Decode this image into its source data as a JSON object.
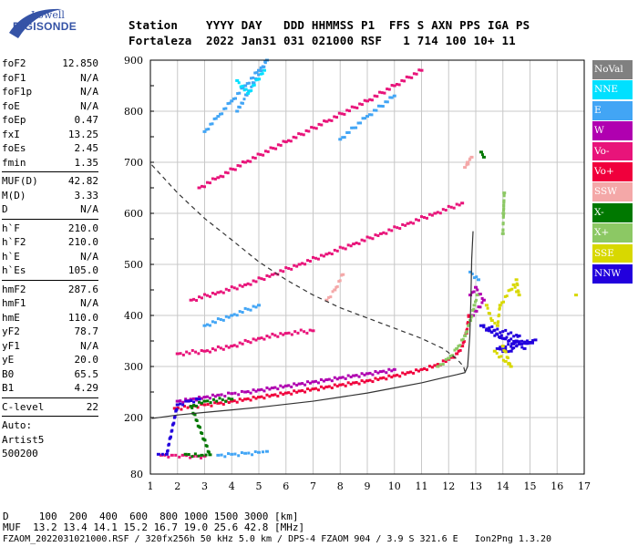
{
  "logo": {
    "top": "Lowell",
    "bottom": "DIGISONDE"
  },
  "header": {
    "row1": "Station    YYYY DAY   DDD HHMMSS P1  FFS S AXN PPS IGA PS",
    "row2": "Fortaleza  2022 Jan31 031 021000 RSF   1 714 100 10+ 11"
  },
  "params": {
    "group1": [
      {
        "label": "foF2",
        "value": "12.850"
      },
      {
        "label": "foF1",
        "value": "N/A"
      },
      {
        "label": "foF1p",
        "value": "N/A"
      },
      {
        "label": "foE",
        "value": "N/A"
      },
      {
        "label": "foEp",
        "value": "0.47"
      },
      {
        "label": "fxI",
        "value": "13.25"
      },
      {
        "label": "foEs",
        "value": "2.45"
      },
      {
        "label": "fmin",
        "value": "1.35"
      }
    ],
    "group2": [
      {
        "label": "MUF(D)",
        "value": "42.82"
      },
      {
        "label": "M(D)",
        "value": "3.33"
      },
      {
        "label": "D",
        "value": "N/A"
      }
    ],
    "group3": [
      {
        "label": "h`F",
        "value": "210.0"
      },
      {
        "label": "h`F2",
        "value": "210.0"
      },
      {
        "label": "h`E",
        "value": "N/A"
      },
      {
        "label": "h`Es",
        "value": "105.0"
      }
    ],
    "group4": [
      {
        "label": "hmF2",
        "value": "287.6"
      },
      {
        "label": "hmF1",
        "value": "N/A"
      },
      {
        "label": "hmE",
        "value": "110.0"
      },
      {
        "label": "yF2",
        "value": "78.7"
      },
      {
        "label": "yF1",
        "value": "N/A"
      },
      {
        "label": "yE",
        "value": "20.0"
      },
      {
        "label": "B0",
        "value": "65.5"
      },
      {
        "label": "B1",
        "value": "4.29"
      }
    ],
    "clevel": {
      "label": "C-level",
      "value": "22"
    },
    "auto": [
      "Auto:",
      "Artist5",
      "500200"
    ]
  },
  "legend": [
    {
      "label": "NoVal",
      "color": "#808080"
    },
    {
      "label": "NNE",
      "color": "#00e0ff"
    },
    {
      "label": "E",
      "color": "#42a5f5"
    },
    {
      "label": "W",
      "color": "#b000b0"
    },
    {
      "label": "Vo-",
      "color": "#e8147a"
    },
    {
      "label": "Vo+",
      "color": "#f0003c"
    },
    {
      "label": "SSW",
      "color": "#f4a8a8"
    },
    {
      "label": "X-",
      "color": "#007800"
    },
    {
      "label": "X+",
      "color": "#8cc864"
    },
    {
      "label": "SSE",
      "color": "#d8d800"
    },
    {
      "label": "NNW",
      "color": "#2200dd"
    }
  ],
  "footer": {
    "d_row": "D     100  200  400  600  800 1000 1500 3000 [km]",
    "muf_row": "MUF  13.2 13.4 14.1 15.2 16.7 19.0 25.6 42.8 [MHz]",
    "file_row": "FZAOM_2022031021000.RSF / 320fx256h 50 kHz 5.0 km / DPS-4 FZAOM 904 / 3.9 S 321.6 E   Ion2Png 1.3.20"
  },
  "chart_data": {
    "type": "scatter",
    "xlim": [
      1,
      17
    ],
    "ylim": [
      80,
      900
    ],
    "xticks": [
      "1",
      "2",
      "3",
      "4",
      "5",
      "6",
      "7",
      "8",
      "9",
      "10",
      "11",
      "12",
      "13",
      "14",
      "15",
      "16",
      "17"
    ],
    "yticks": [
      "80",
      "200",
      "300",
      "400",
      "500",
      "600",
      "700",
      "800",
      "900"
    ],
    "grid": true,
    "series": [
      {
        "name": "Vo+",
        "color": "#f0003c",
        "points": [
          [
            1.9,
            218
          ],
          [
            2.5,
            222
          ],
          [
            3.0,
            225
          ],
          [
            3.5,
            228
          ],
          [
            4.0,
            232
          ],
          [
            4.5,
            236
          ],
          [
            5.0,
            240
          ],
          [
            5.5,
            244
          ],
          [
            6.0,
            248
          ],
          [
            6.5,
            252
          ],
          [
            7.0,
            256
          ],
          [
            7.5,
            260
          ],
          [
            8.0,
            264
          ],
          [
            8.5,
            268
          ],
          [
            9.0,
            272
          ],
          [
            9.5,
            277
          ],
          [
            10.0,
            282
          ],
          [
            10.5,
            288
          ],
          [
            11.0,
            294
          ],
          [
            11.5,
            302
          ],
          [
            12.0,
            314
          ],
          [
            12.3,
            325
          ],
          [
            12.5,
            340
          ],
          [
            12.65,
            365
          ],
          [
            12.75,
            400
          ]
        ]
      },
      {
        "name": "W",
        "color": "#b000b0",
        "points": [
          [
            2.0,
            232
          ],
          [
            2.5,
            236
          ],
          [
            3.0,
            240
          ],
          [
            3.5,
            244
          ],
          [
            4.0,
            247
          ],
          [
            4.5,
            250
          ],
          [
            5.0,
            254
          ],
          [
            5.5,
            258
          ],
          [
            6.0,
            262
          ],
          [
            6.5,
            266
          ],
          [
            7.0,
            270
          ],
          [
            7.5,
            274
          ],
          [
            8.0,
            278
          ],
          [
            8.5,
            282
          ],
          [
            9.0,
            286
          ],
          [
            9.5,
            290
          ],
          [
            10.0,
            294
          ],
          [
            12.8,
            440
          ],
          [
            13.0,
            455
          ],
          [
            13.3,
            430
          ],
          [
            12.9,
            400
          ]
        ]
      },
      {
        "name": "X+",
        "color": "#8cc864",
        "points": [
          [
            11.6,
            300
          ],
          [
            12.0,
            316
          ],
          [
            12.3,
            335
          ],
          [
            12.6,
            360
          ],
          [
            12.8,
            390
          ],
          [
            12.95,
            420
          ],
          [
            13.05,
            440
          ],
          [
            14.0,
            560
          ],
          [
            14.05,
            640
          ],
          [
            14.02,
            600
          ]
        ]
      },
      {
        "name": "E",
        "color": "#42a5f5",
        "points": [
          [
            3.0,
            760
          ],
          [
            3.5,
            790
          ],
          [
            4.0,
            820
          ],
          [
            4.5,
            850
          ],
          [
            5.0,
            880
          ],
          [
            5.3,
            900
          ],
          [
            4.2,
            800
          ],
          [
            3.5,
            120
          ],
          [
            4.0,
            122
          ],
          [
            4.5,
            124
          ],
          [
            5.0,
            126
          ],
          [
            5.3,
            128
          ],
          [
            3.0,
            380
          ],
          [
            4.0,
            400
          ],
          [
            5.0,
            420
          ],
          [
            8.0,
            745
          ],
          [
            9.0,
            790
          ],
          [
            10.0,
            830
          ],
          [
            12.8,
            485
          ],
          [
            13.1,
            470
          ]
        ]
      },
      {
        "name": "Vo-",
        "color": "#e8147a",
        "points": [
          [
            2.8,
            650
          ],
          [
            3.5,
            670
          ],
          [
            4.5,
            700
          ],
          [
            6.0,
            740
          ],
          [
            7.5,
            780
          ],
          [
            9.0,
            820
          ],
          [
            10.0,
            850
          ],
          [
            11.0,
            880
          ],
          [
            1.4,
            120
          ],
          [
            1.8,
            120
          ],
          [
            2.2,
            120
          ],
          [
            2.6,
            118
          ],
          [
            3.0,
            118
          ],
          [
            2.0,
            325
          ],
          [
            3.0,
            330
          ],
          [
            4.0,
            340
          ],
          [
            5.0,
            355
          ],
          [
            6.0,
            365
          ],
          [
            7.0,
            370
          ],
          [
            2.5,
            430
          ],
          [
            3.5,
            445
          ],
          [
            4.5,
            460
          ],
          [
            5.5,
            480
          ],
          [
            6.5,
            500
          ],
          [
            7.5,
            520
          ],
          [
            8.5,
            540
          ],
          [
            9.5,
            560
          ],
          [
            10.5,
            580
          ],
          [
            11.5,
            600
          ],
          [
            12.5,
            620
          ]
        ]
      },
      {
        "name": "NNW",
        "color": "#2200dd",
        "points": [
          [
            1.3,
            122
          ],
          [
            1.6,
            122
          ],
          [
            2.0,
            225
          ],
          [
            2.4,
            232
          ],
          [
            2.8,
            236
          ],
          [
            13.5,
            370
          ],
          [
            14.0,
            355
          ],
          [
            14.5,
            350
          ],
          [
            14.9,
            345
          ],
          [
            15.2,
            352
          ],
          [
            13.8,
            335
          ],
          [
            14.3,
            330
          ],
          [
            14.6,
            360
          ],
          [
            13.2,
            380
          ],
          [
            14.8,
            335
          ]
        ]
      },
      {
        "name": "SSE",
        "color": "#d8d800",
        "points": [
          [
            13.4,
            420
          ],
          [
            13.6,
            390
          ],
          [
            13.8,
            380
          ],
          [
            13.9,
            420
          ],
          [
            14.4,
            460
          ],
          [
            14.6,
            440
          ],
          [
            14.5,
            470
          ],
          [
            13.7,
            330
          ],
          [
            14.1,
            310
          ],
          [
            14.3,
            300
          ],
          [
            14.0,
            340
          ],
          [
            16.7,
            440
          ]
        ]
      },
      {
        "name": "SSW",
        "color": "#f4a8a8",
        "points": [
          [
            7.5,
            430
          ],
          [
            7.8,
            450
          ],
          [
            8.1,
            480
          ],
          [
            12.6,
            690
          ],
          [
            12.85,
            710
          ],
          [
            12.7,
            700
          ]
        ]
      },
      {
        "name": "X-",
        "color": "#007800",
        "points": [
          [
            2.3,
            122
          ],
          [
            2.9,
            120
          ],
          [
            3.2,
            121
          ],
          [
            2.5,
            222
          ],
          [
            3.0,
            232
          ],
          [
            4.0,
            236
          ],
          [
            13.2,
            720
          ],
          [
            13.3,
            710
          ]
        ]
      },
      {
        "name": "NNE",
        "color": "#00e0ff",
        "points": [
          [
            4.2,
            860
          ],
          [
            4.6,
            835
          ],
          [
            5.2,
            880
          ]
        ]
      }
    ]
  }
}
